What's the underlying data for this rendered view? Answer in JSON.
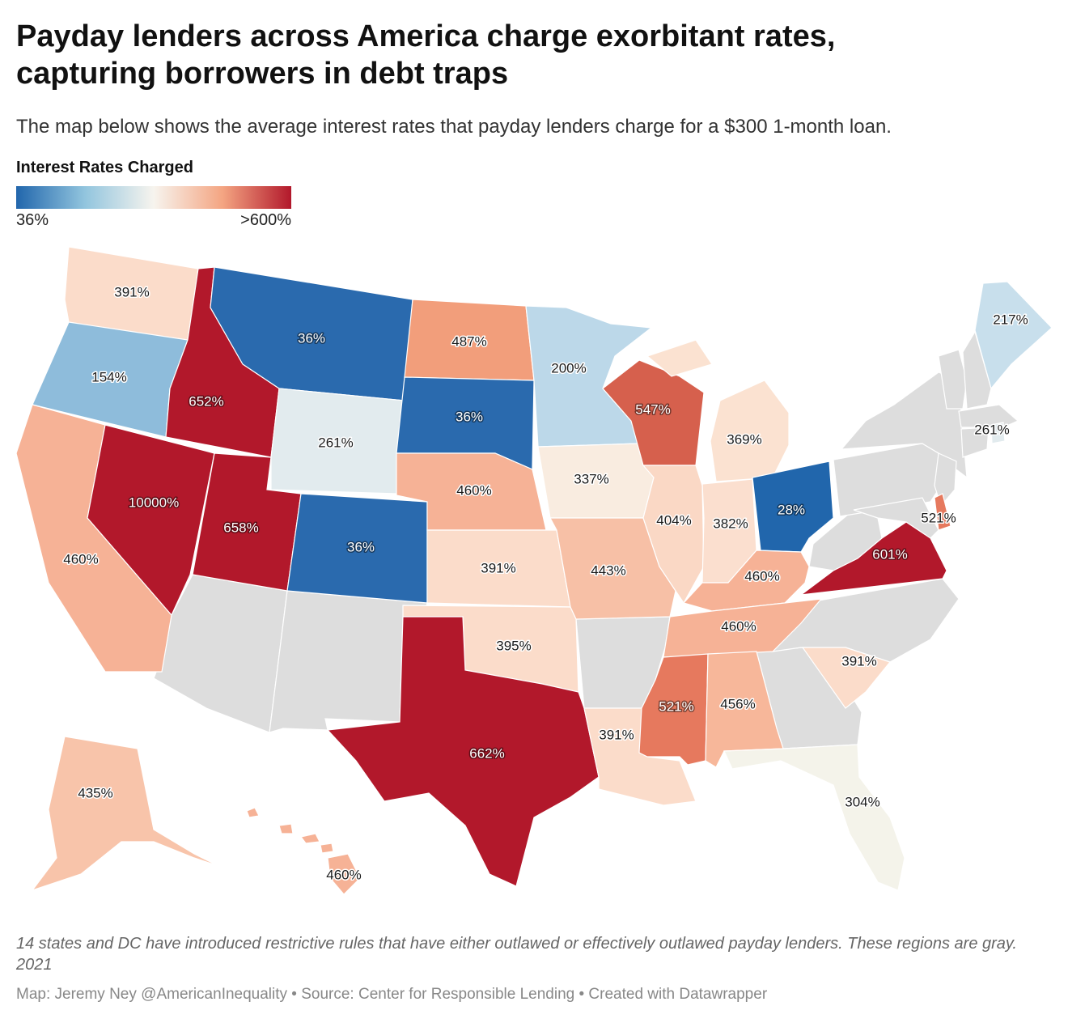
{
  "header": {
    "title_line1": "Payday lenders across America charge exorbitant rates,",
    "title_line2": "capturing borrowers in debt traps",
    "subtitle": "The map below shows the average interest rates that payday lenders charge for a $300 1-month loan."
  },
  "legend": {
    "title": "Interest Rates Charged",
    "min_label": "36%",
    "max_label": ">600%",
    "colors": [
      "#2166ac",
      "#92c5de",
      "#f7f4ee",
      "#f4a582",
      "#b2182b"
    ]
  },
  "colors": {
    "no_data": "#dddddd"
  },
  "map": {
    "states": [
      {
        "id": "WA",
        "label": "391%",
        "color": "#fbdcca"
      },
      {
        "id": "OR",
        "label": "154%",
        "color": "#8ebcdb"
      },
      {
        "id": "CA",
        "label": "460%",
        "color": "#f6b296"
      },
      {
        "id": "ID",
        "label": "652%",
        "color": "#b2182b"
      },
      {
        "id": "NV",
        "label": "10000%",
        "color": "#b2182b"
      },
      {
        "id": "UT",
        "label": "658%",
        "color": "#b2182b"
      },
      {
        "id": "MT",
        "label": "36%",
        "color": "#2a6aae"
      },
      {
        "id": "WY",
        "label": "261%",
        "color": "#e2ebee"
      },
      {
        "id": "CO",
        "label": "36%",
        "color": "#2a6aae"
      },
      {
        "id": "ND",
        "label": "487%",
        "color": "#f29e7b"
      },
      {
        "id": "SD",
        "label": "36%",
        "color": "#2a6aae"
      },
      {
        "id": "NE",
        "label": "460%",
        "color": "#f6b296"
      },
      {
        "id": "KS",
        "label": "391%",
        "color": "#fbdcca"
      },
      {
        "id": "OK",
        "label": "395%",
        "color": "#fbdcca"
      },
      {
        "id": "TX",
        "label": "662%",
        "color": "#b2182b"
      },
      {
        "id": "MN",
        "label": "200%",
        "color": "#bcd8e9"
      },
      {
        "id": "IA",
        "label": "337%",
        "color": "#f9ece0"
      },
      {
        "id": "MO",
        "label": "443%",
        "color": "#f7c0a6"
      },
      {
        "id": "LA",
        "label": "391%",
        "color": "#fbdcca"
      },
      {
        "id": "WI",
        "label": "547%",
        "color": "#d6604d"
      },
      {
        "id": "IL",
        "label": "404%",
        "color": "#fad8c5"
      },
      {
        "id": "MI",
        "label": "369%",
        "color": "#fbe2d1"
      },
      {
        "id": "IN",
        "label": "382%",
        "color": "#fbdfcf"
      },
      {
        "id": "OH",
        "label": "28%",
        "color": "#2166ac"
      },
      {
        "id": "KY",
        "label": "460%",
        "color": "#f6b296"
      },
      {
        "id": "TN",
        "label": "460%",
        "color": "#f6b296"
      },
      {
        "id": "MS",
        "label": "521%",
        "color": "#e6795e"
      },
      {
        "id": "AL",
        "label": "456%",
        "color": "#f7b79a"
      },
      {
        "id": "FL",
        "label": "304%",
        "color": "#f4f3ea"
      },
      {
        "id": "SC",
        "label": "391%",
        "color": "#fbdcca"
      },
      {
        "id": "VA",
        "label": "601%",
        "color": "#b2182b"
      },
      {
        "id": "DE",
        "label": "521%",
        "color": "#e6795e"
      },
      {
        "id": "RI",
        "label": "261%",
        "color": "#e2ebee"
      },
      {
        "id": "ME",
        "label": "217%",
        "color": "#c8dfec"
      },
      {
        "id": "AK",
        "label": "435%",
        "color": "#f8c4aa"
      },
      {
        "id": "HI",
        "label": "460%",
        "color": "#f6b296"
      }
    ]
  },
  "footer": {
    "note": "14 states and DC have introduced restrictive rules that have either outlawed or effectively outlawed payday lenders. These regions are gray. 2021",
    "credit": "Map: Jeremy Ney @AmericanInequality • Source: Center for Responsible Lending • Created with Datawrapper"
  }
}
